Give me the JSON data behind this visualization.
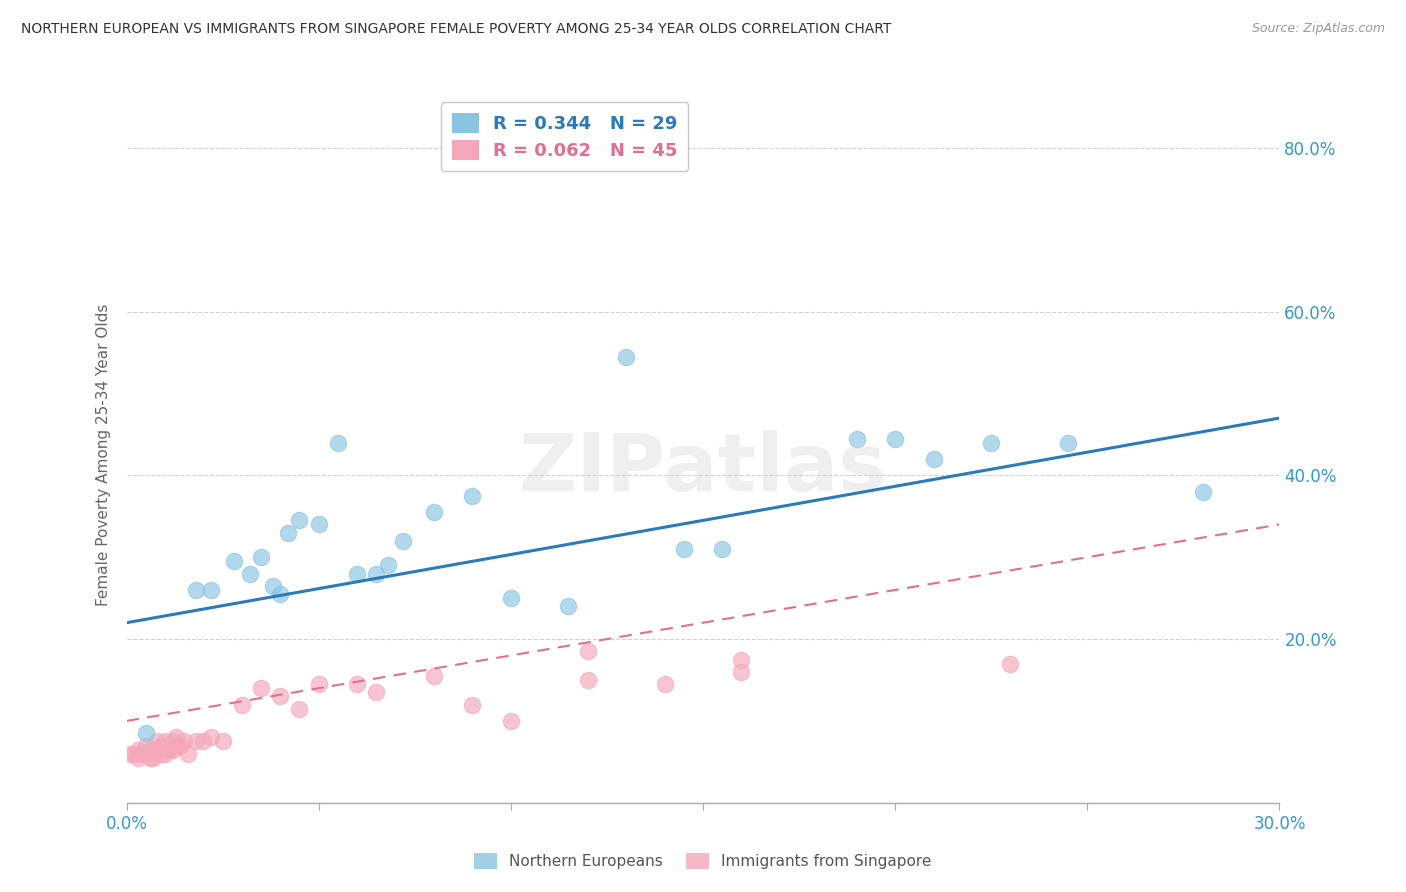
{
  "title": "NORTHERN EUROPEAN VS IMMIGRANTS FROM SINGAPORE FEMALE POVERTY AMONG 25-34 YEAR OLDS CORRELATION CHART",
  "source": "Source: ZipAtlas.com",
  "ylabel": "Female Poverty Among 25-34 Year Olds",
  "xlim": [
    0.0,
    0.3
  ],
  "ylim": [
    0.0,
    0.85
  ],
  "x_tick_positions": [
    0.0,
    0.05,
    0.1,
    0.15,
    0.2,
    0.25,
    0.3
  ],
  "x_tick_labels": [
    "0.0%",
    "",
    "",
    "",
    "",
    "",
    "30.0%"
  ],
  "y_tick_positions": [
    0.0,
    0.2,
    0.4,
    0.6,
    0.8
  ],
  "y_tick_labels": [
    "",
    "20.0%",
    "40.0%",
    "60.0%",
    "80.0%"
  ],
  "blue_R": "0.344",
  "blue_N": "29",
  "pink_R": "0.062",
  "pink_N": "45",
  "blue_color": "#89c4e1",
  "pink_color": "#f4a7b9",
  "blue_line_color": "#2b7bba",
  "pink_line_color": "#e07090",
  "blue_label": "Northern Europeans",
  "pink_label": "Immigrants from Singapore",
  "blue_x": [
    0.005,
    0.018,
    0.022,
    0.028,
    0.032,
    0.035,
    0.038,
    0.04,
    0.042,
    0.045,
    0.05,
    0.055,
    0.06,
    0.065,
    0.068,
    0.072,
    0.08,
    0.09,
    0.1,
    0.115,
    0.13,
    0.145,
    0.155,
    0.19,
    0.2,
    0.21,
    0.225,
    0.245,
    0.28
  ],
  "blue_y": [
    0.085,
    0.26,
    0.26,
    0.295,
    0.28,
    0.3,
    0.265,
    0.255,
    0.33,
    0.345,
    0.34,
    0.44,
    0.28,
    0.28,
    0.29,
    0.32,
    0.355,
    0.375,
    0.25,
    0.24,
    0.545,
    0.31,
    0.31,
    0.445,
    0.445,
    0.42,
    0.44,
    0.44,
    0.38
  ],
  "pink_x": [
    0.001,
    0.002,
    0.003,
    0.003,
    0.004,
    0.005,
    0.005,
    0.006,
    0.006,
    0.007,
    0.007,
    0.008,
    0.008,
    0.009,
    0.009,
    0.01,
    0.01,
    0.011,
    0.012,
    0.012,
    0.013,
    0.013,
    0.014,
    0.015,
    0.016,
    0.018,
    0.02,
    0.022,
    0.025,
    0.03,
    0.035,
    0.04,
    0.045,
    0.05,
    0.06,
    0.065,
    0.08,
    0.09,
    0.1,
    0.12,
    0.14,
    0.16,
    0.12,
    0.16,
    0.23
  ],
  "pink_y": [
    0.06,
    0.06,
    0.065,
    0.055,
    0.06,
    0.07,
    0.06,
    0.065,
    0.055,
    0.065,
    0.055,
    0.065,
    0.075,
    0.06,
    0.07,
    0.06,
    0.075,
    0.065,
    0.065,
    0.075,
    0.07,
    0.08,
    0.07,
    0.075,
    0.06,
    0.075,
    0.075,
    0.08,
    0.075,
    0.12,
    0.14,
    0.13,
    0.115,
    0.145,
    0.145,
    0.135,
    0.155,
    0.12,
    0.1,
    0.15,
    0.145,
    0.16,
    0.185,
    0.175,
    0.17
  ],
  "blue_line_x": [
    0.0,
    0.3
  ],
  "blue_line_y": [
    0.22,
    0.47
  ],
  "pink_line_x": [
    0.0,
    0.3
  ],
  "pink_line_y": [
    0.1,
    0.34
  ],
  "background_color": "#ffffff",
  "grid_color": "#cccccc",
  "watermark_text": "ZIPatlas"
}
